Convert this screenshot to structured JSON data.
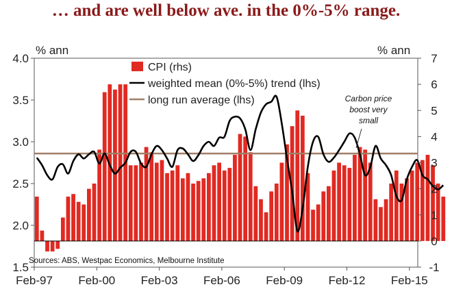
{
  "chart_data": {
    "type": "bar",
    "title": "… and are well below ave. in the 0%-5% range.",
    "left_unit": "% ann",
    "right_unit": "% ann",
    "left_axis": {
      "min": 1.5,
      "max": 4.0,
      "ticks": [
        "1.5",
        "2.0",
        "2.5",
        "3.0",
        "3.5",
        "4.0"
      ]
    },
    "right_axis": {
      "min": -1,
      "max": 7,
      "ticks": [
        "-1",
        "0",
        "1",
        "2",
        "3",
        "4",
        "5",
        "6",
        "7"
      ]
    },
    "x_ticks": [
      "Feb-97",
      "Feb-00",
      "Feb-03",
      "Feb-06",
      "Feb-09",
      "Feb-12",
      "Feb-15"
    ],
    "x_range_years": [
      1997.0,
      2015.4
    ],
    "series": [
      {
        "name": "CPI (rhs)",
        "type": "bar",
        "axis": "right",
        "color": "#e02a22",
        "start": 1997.0,
        "step": 0.25,
        "values": [
          1.7,
          0.4,
          -0.4,
          -0.4,
          -0.3,
          0.9,
          1.7,
          1.8,
          1.5,
          1.4,
          2.0,
          2.2,
          3.5,
          5.7,
          6.0,
          5.8,
          6.0,
          6.0,
          2.9,
          2.9,
          3.0,
          3.6,
          3.4,
          3.0,
          3.1,
          2.6,
          2.7,
          2.9,
          2.4,
          2.6,
          2.2,
          2.3,
          2.4,
          2.6,
          2.9,
          3.0,
          2.7,
          2.8,
          3.3,
          4.1,
          4.0,
          3.4,
          2.1,
          1.6,
          1.1,
          1.9,
          2.2,
          3.0,
          3.7,
          4.4,
          5.0,
          4.8,
          2.6,
          1.2,
          1.4,
          1.9,
          2.1,
          2.7,
          3.0,
          2.9,
          2.8,
          3.3,
          3.6,
          3.5,
          3.0,
          1.6,
          1.3,
          1.6,
          2.2,
          2.7,
          2.2,
          2.4,
          2.7,
          3.0,
          3.1,
          3.3,
          2.9,
          2.2,
          1.7
        ]
      },
      {
        "name": "weighted mean (0%-5%) trend (lhs)",
        "type": "line",
        "axis": "left",
        "color": "#000000",
        "start": 1997.0,
        "step": 0.25,
        "values": [
          2.81,
          2.72,
          2.6,
          2.55,
          2.7,
          2.73,
          2.62,
          2.77,
          2.85,
          2.8,
          2.85,
          2.88,
          2.74,
          2.86,
          2.72,
          2.62,
          2.69,
          2.75,
          2.88,
          2.88,
          2.74,
          2.7,
          2.85,
          2.95,
          2.9,
          2.8,
          2.7,
          2.9,
          2.92,
          2.85,
          2.77,
          2.84,
          2.95,
          3.0,
          2.95,
          3.05,
          3.06,
          3.25,
          3.3,
          3.28,
          3.15,
          2.9,
          3.15,
          3.35,
          3.45,
          3.48,
          3.54,
          3.22,
          2.8,
          2.4,
          1.93,
          2.2,
          2.7,
          3.0,
          3.06,
          2.85,
          2.76,
          2.81,
          2.9,
          3.0,
          3.1,
          3.05,
          2.85,
          2.6,
          2.7,
          2.95,
          2.8,
          2.72,
          2.6,
          2.35,
          2.3,
          2.55,
          2.7,
          2.78,
          2.6,
          2.55,
          2.47,
          2.43,
          2.48
        ]
      },
      {
        "name": "long run average (lhs)",
        "type": "hline",
        "axis": "left",
        "color": "#a07e66",
        "value": 2.86
      }
    ],
    "legend": [
      "CPI (rhs)",
      "weighted mean (0%-5%) trend (lhs)",
      "long run average (lhs)"
    ],
    "annotation": {
      "lines": [
        "Carbon price",
        "boost very",
        "small"
      ],
      "at_year": 2012.25
    },
    "source": "Sources: ABS, Westpac Economics, Melbourne Institute"
  }
}
